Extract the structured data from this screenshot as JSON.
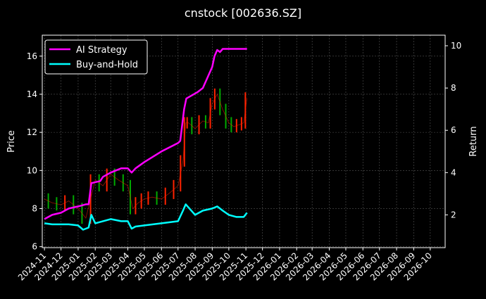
{
  "chart_data": {
    "type": "line",
    "title": "cnstock [002636.SZ]",
    "ylabel_left": "Price",
    "ylabel_right": "Return",
    "ylim_left": [
      5.95,
      17.1
    ],
    "ylim_right": [
      0.45,
      10.5
    ],
    "yticks_left": [
      6,
      8,
      10,
      12,
      14,
      16
    ],
    "yticks_right": [
      2,
      4,
      6,
      8,
      10
    ],
    "xlim": [
      "2024-10-28",
      "2026-10-28"
    ],
    "xticks": [
      "2024-11",
      "2024-12",
      "2025-01",
      "2025-02",
      "2025-03",
      "2025-04",
      "2025-05",
      "2025-06",
      "2025-07",
      "2025-08",
      "2025-09",
      "2025-10",
      "2025-11",
      "2025-12",
      "2026-01",
      "2026-02",
      "2026-03",
      "2026-04",
      "2026-05",
      "2026-06",
      "2026-07",
      "2026-08",
      "2026-09",
      "2026-10"
    ],
    "grid": true,
    "legend": {
      "placement": "top-left",
      "entries": [
        "AI Strategy",
        "Buy-and-Hold"
      ]
    },
    "colors": {
      "ai": "#ff00ff",
      "bh": "#00ffff",
      "up": "#ff2200",
      "down": "#00aa00",
      "grid": "#555555"
    },
    "price_series": {
      "name": "Price",
      "x": [
        "2024-11-01",
        "2024-11-15",
        "2024-12-01",
        "2024-12-15",
        "2025-01-01",
        "2025-01-15",
        "2025-02-01",
        "2025-02-15",
        "2025-03-01",
        "2025-03-15",
        "2025-04-01",
        "2025-04-10",
        "2025-04-20",
        "2025-05-01",
        "2025-05-15",
        "2025-06-01",
        "2025-06-15",
        "2025-07-01",
        "2025-07-10",
        "2025-07-15",
        "2025-07-20",
        "2025-08-01",
        "2025-08-15",
        "2025-08-25",
        "2025-09-01",
        "2025-09-10",
        "2025-09-20",
        "2025-10-01",
        "2025-10-10",
        "2025-10-20",
        "2025-10-28",
        "2025-11-03"
      ],
      "values": [
        8.5,
        8.3,
        8.2,
        8.4,
        8.0,
        7.5,
        9.5,
        9.2,
        9.8,
        9.5,
        9.2,
        8.0,
        8.3,
        8.5,
        8.6,
        8.5,
        8.8,
        9.2,
        10.5,
        12.5,
        12.5,
        12.2,
        12.6,
        12.5,
        13.5,
        14.0,
        13.2,
        12.5,
        12.3,
        12.4,
        12.5,
        13.8
      ]
    },
    "series": [
      {
        "name": "AI Strategy",
        "x": [
          "2024-11-01",
          "2024-11-15",
          "2024-12-01",
          "2024-12-15",
          "2025-01-01",
          "2025-01-15",
          "2025-01-20",
          "2025-01-25",
          "2025-02-10",
          "2025-02-15",
          "2025-03-01",
          "2025-03-20",
          "2025-04-01",
          "2025-04-08",
          "2025-04-15",
          "2025-05-01",
          "2025-06-01",
          "2025-07-01",
          "2025-07-05",
          "2025-07-12",
          "2025-07-16",
          "2025-08-05",
          "2025-08-15",
          "2025-09-01",
          "2025-09-05",
          "2025-09-10",
          "2025-09-15",
          "2025-09-20",
          "2025-10-01",
          "2025-10-15",
          "2025-11-03"
        ],
        "values": [
          1.8,
          2.0,
          2.1,
          2.3,
          2.4,
          2.5,
          2.5,
          3.5,
          3.6,
          3.8,
          4.0,
          4.2,
          4.2,
          4.0,
          4.2,
          4.5,
          5.0,
          5.4,
          5.5,
          7.0,
          7.5,
          7.8,
          8.0,
          9.0,
          9.5,
          9.8,
          9.7,
          9.85,
          9.85,
          9.85,
          9.85
        ]
      },
      {
        "name": "Buy-and-Hold",
        "x": [
          "2024-11-01",
          "2024-11-15",
          "2024-12-01",
          "2024-12-15",
          "2025-01-01",
          "2025-01-10",
          "2025-01-20",
          "2025-01-25",
          "2025-02-01",
          "2025-02-15",
          "2025-03-01",
          "2025-03-20",
          "2025-04-01",
          "2025-04-08",
          "2025-04-15",
          "2025-05-01",
          "2025-06-01",
          "2025-07-01",
          "2025-07-10",
          "2025-07-15",
          "2025-08-01",
          "2025-08-15",
          "2025-09-01",
          "2025-09-10",
          "2025-09-20",
          "2025-10-01",
          "2025-10-15",
          "2025-10-28",
          "2025-11-03"
        ],
        "values": [
          1.6,
          1.55,
          1.55,
          1.55,
          1.5,
          1.3,
          1.4,
          2.0,
          1.6,
          1.7,
          1.8,
          1.7,
          1.7,
          1.35,
          1.45,
          1.5,
          1.6,
          1.7,
          2.2,
          2.5,
          2.0,
          2.2,
          2.3,
          2.4,
          2.2,
          2.0,
          1.9,
          1.9,
          2.1
        ]
      }
    ]
  }
}
